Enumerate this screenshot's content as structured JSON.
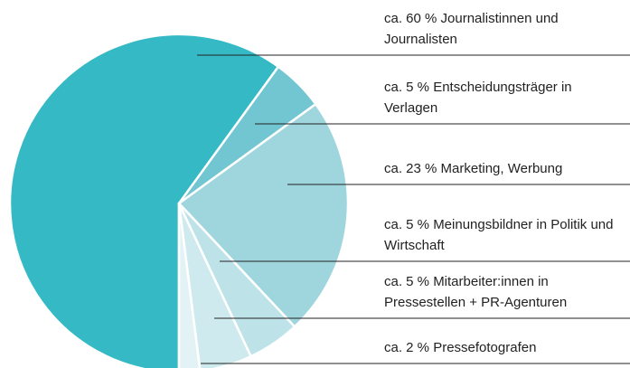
{
  "chart_data": {
    "type": "pie",
    "categories": [
      "ca. 60 % Journalistinnen und Journalisten",
      "ca. 5 % Entscheidungsträger in Verlagen",
      "ca. 23 % Marketing, Werbung",
      "ca. 5 % Meinungsbildner in Politik und Wirtschaft",
      "ca. 5 % Mitarbeiter:innen in Pressestellen + PR-Agenturen",
      "ca. 2 % Pressefotografen"
    ],
    "values": [
      60,
      5,
      23,
      5,
      5,
      2
    ],
    "colors": [
      "#34b9c5",
      "#72c6d1",
      "#9fd6dd",
      "#bde3e8",
      "#cfeaee",
      "#e3f3f5"
    ]
  }
}
